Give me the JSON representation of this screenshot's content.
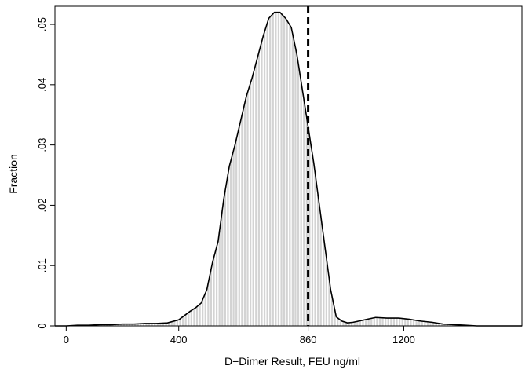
{
  "chart_data": {
    "type": "bar",
    "xlabel": "D−Dimer Result, FEU ng/ml",
    "ylabel": "Fraction",
    "xlim": [
      -40,
      1620
    ],
    "ylim": [
      0,
      0.053
    ],
    "xticks": [
      0,
      400,
      860,
      1200
    ],
    "xtick_labels": [
      "0",
      "400",
      "860",
      "1200"
    ],
    "yticks": [
      0,
      0.01,
      0.02,
      0.03,
      0.04,
      0.05
    ],
    "ytick_labels": [
      "0",
      ".01",
      ".02",
      ".03",
      ".04",
      ".05"
    ],
    "grid": false,
    "legend": "none",
    "bar_color": "#d3d3d3",
    "curve_color": "#000000",
    "reference_line": {
      "x": 860,
      "style": "dashed",
      "color": "#000000"
    },
    "series": [
      {
        "type": "histogram",
        "bin_width": 10,
        "x": [
          -40,
          0,
          40,
          80,
          120,
          160,
          200,
          240,
          280,
          320,
          360,
          400,
          420,
          440,
          460,
          480,
          500,
          520,
          540,
          560,
          580,
          600,
          620,
          640,
          660,
          680,
          700,
          720,
          740,
          760,
          780,
          800,
          820,
          840,
          860,
          880,
          900,
          920,
          940,
          960,
          980,
          1000,
          1020,
          1040,
          1060,
          1080,
          1100,
          1140,
          1180,
          1220,
          1260,
          1300,
          1340,
          1380,
          1420,
          1460,
          1500,
          1540,
          1580,
          1620
        ],
        "values": [
          0,
          0,
          0.0001,
          0.0001,
          0.0002,
          0.0002,
          0.0003,
          0.0003,
          0.0004,
          0.0004,
          0.0005,
          0.001,
          0.0017,
          0.0024,
          0.003,
          0.0038,
          0.006,
          0.0105,
          0.014,
          0.021,
          0.0265,
          0.03,
          0.034,
          0.038,
          0.041,
          0.0445,
          0.048,
          0.051,
          0.052,
          0.052,
          0.051,
          0.0495,
          0.045,
          0.039,
          0.033,
          0.027,
          0.02,
          0.013,
          0.006,
          0.0015,
          0.0008,
          0.0005,
          0.0006,
          0.0008,
          0.001,
          0.0012,
          0.0014,
          0.0013,
          0.0013,
          0.0011,
          0.0008,
          0.0006,
          0.0003,
          0.0002,
          0.0001,
          0,
          0,
          0,
          0,
          0
        ]
      },
      {
        "type": "density",
        "x": [
          -40,
          0,
          40,
          80,
          120,
          160,
          200,
          240,
          280,
          320,
          360,
          400,
          420,
          440,
          460,
          480,
          500,
          520,
          540,
          560,
          580,
          600,
          620,
          640,
          660,
          680,
          700,
          720,
          740,
          760,
          780,
          800,
          820,
          840,
          860,
          880,
          900,
          920,
          940,
          960,
          980,
          1000,
          1020,
          1040,
          1060,
          1080,
          1100,
          1140,
          1180,
          1220,
          1260,
          1300,
          1340,
          1380,
          1420,
          1460,
          1500,
          1540,
          1580,
          1620
        ],
        "values": [
          0,
          0,
          0.0001,
          0.0001,
          0.0002,
          0.0002,
          0.0003,
          0.0003,
          0.0004,
          0.0004,
          0.0005,
          0.001,
          0.0017,
          0.0024,
          0.003,
          0.0038,
          0.006,
          0.0105,
          0.014,
          0.021,
          0.0265,
          0.03,
          0.034,
          0.038,
          0.041,
          0.0445,
          0.048,
          0.051,
          0.052,
          0.052,
          0.051,
          0.0495,
          0.045,
          0.039,
          0.033,
          0.027,
          0.02,
          0.013,
          0.006,
          0.0015,
          0.0008,
          0.0005,
          0.0006,
          0.0008,
          0.001,
          0.0012,
          0.0014,
          0.0013,
          0.0013,
          0.0011,
          0.0008,
          0.0006,
          0.0003,
          0.0002,
          0.0001,
          0,
          0,
          0,
          0,
          0
        ]
      }
    ]
  }
}
